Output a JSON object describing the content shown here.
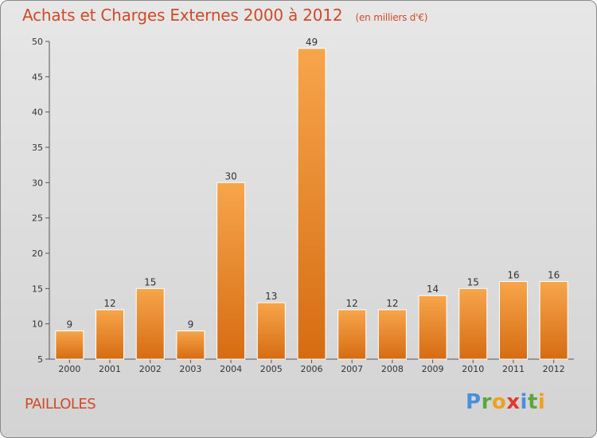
{
  "header": {
    "title": "Achats et Charges Externes 2000 à 2012",
    "subtitle": "(en milliers d'€)"
  },
  "commune": "PAILLOLES",
  "logo": {
    "text": "Proxiti"
  },
  "colors": {
    "bar": "#f08c2a",
    "title": "#d04a2a"
  },
  "chart_data": {
    "type": "bar",
    "title": "Achats et Charges Externes 2000 à 2012",
    "subtitle": "(en milliers d'€)",
    "categories": [
      "2000",
      "2001",
      "2002",
      "2003",
      "2004",
      "2005",
      "2006",
      "2007",
      "2008",
      "2009",
      "2010",
      "2011",
      "2012"
    ],
    "values": [
      9,
      12,
      15,
      9,
      30,
      13,
      49,
      12,
      12,
      14,
      15,
      16,
      16
    ],
    "ylim": [
      5,
      50
    ],
    "yticks": [
      5,
      10,
      15,
      20,
      25,
      30,
      35,
      40,
      45,
      50
    ],
    "xlabel": "",
    "ylabel": "",
    "grid": false,
    "data_labels": true
  }
}
